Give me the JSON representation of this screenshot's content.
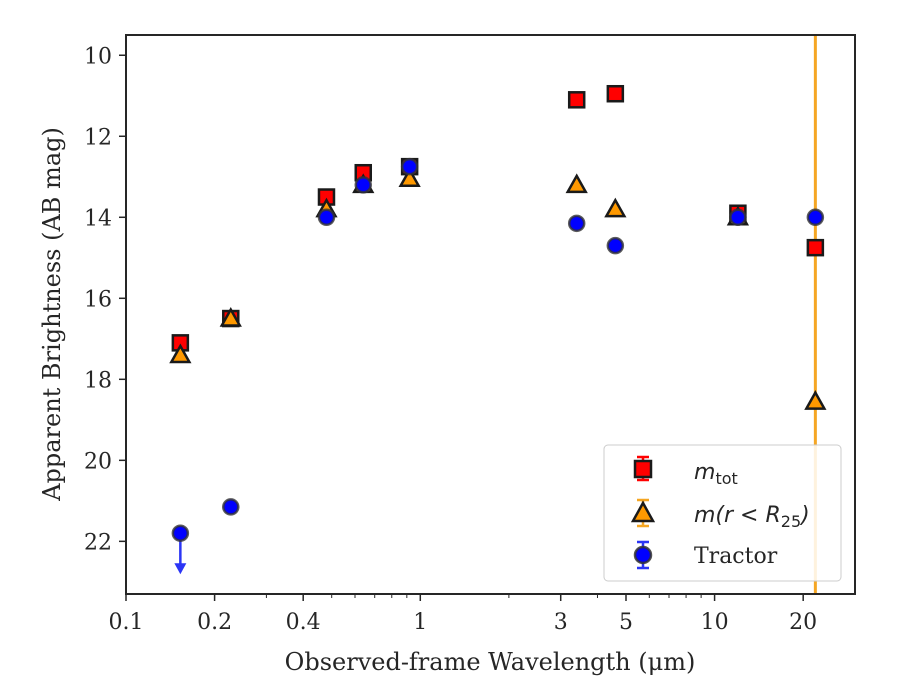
{
  "chart_data": {
    "type": "scatter",
    "xlabel": "Observed-frame Wavelength (μm)",
    "ylabel": "Apparent Brightness (AB mag)",
    "xscale": "log",
    "xlim": [
      0.1,
      30
    ],
    "ylim": [
      23.3,
      9.5
    ],
    "y_inverted": true,
    "x_ticks": [
      0.1,
      0.2,
      0.4,
      1,
      3,
      5,
      10,
      20
    ],
    "x_tick_labels": [
      "0.1",
      "0.2",
      "0.4",
      "1",
      "3",
      "5",
      "10",
      "20"
    ],
    "y_ticks": [
      10,
      12,
      14,
      16,
      18,
      20,
      22
    ],
    "y_tick_labels": [
      "10",
      "12",
      "14",
      "16",
      "18",
      "20",
      "22"
    ],
    "grid": false,
    "legend_position": "lower-right",
    "vertical_line": {
      "x": 22,
      "color": "#f5a623"
    },
    "series": [
      {
        "name": "m_tot",
        "legend_main": "m",
        "legend_sub": "tot",
        "marker": "square",
        "color": "#ff0000",
        "edgecolor": "#1a1a1a",
        "x": [
          0.153,
          0.227,
          0.48,
          0.64,
          0.92,
          3.4,
          4.6,
          12.0,
          22.0
        ],
        "y": [
          17.1,
          16.5,
          13.5,
          12.9,
          12.75,
          11.1,
          10.95,
          13.9,
          14.75
        ]
      },
      {
        "name": "m(r < R25)",
        "legend_main": "m(r < R",
        "legend_sub": "25",
        "legend_close": ")",
        "marker": "triangle",
        "color": "#ff9900",
        "edgecolor": "#1a1a1a",
        "x": [
          0.153,
          0.227,
          0.48,
          0.64,
          0.92,
          3.4,
          4.6,
          12.0,
          22.0
        ],
        "y": [
          17.4,
          16.5,
          13.8,
          13.2,
          13.05,
          13.2,
          13.8,
          14.0,
          18.55
        ]
      },
      {
        "name": "Tractor",
        "marker": "circle",
        "color": "#0000ff",
        "edgecolor": "#333333",
        "x": [
          0.153,
          0.227,
          0.48,
          0.64,
          0.92,
          3.4,
          4.6,
          12.0,
          22.0
        ],
        "y": [
          21.8,
          21.15,
          14.0,
          13.2,
          12.75,
          14.15,
          14.7,
          14.0,
          14.0
        ],
        "upper_limit_index": 0,
        "arrow_color": "#2b35f5"
      }
    ]
  }
}
